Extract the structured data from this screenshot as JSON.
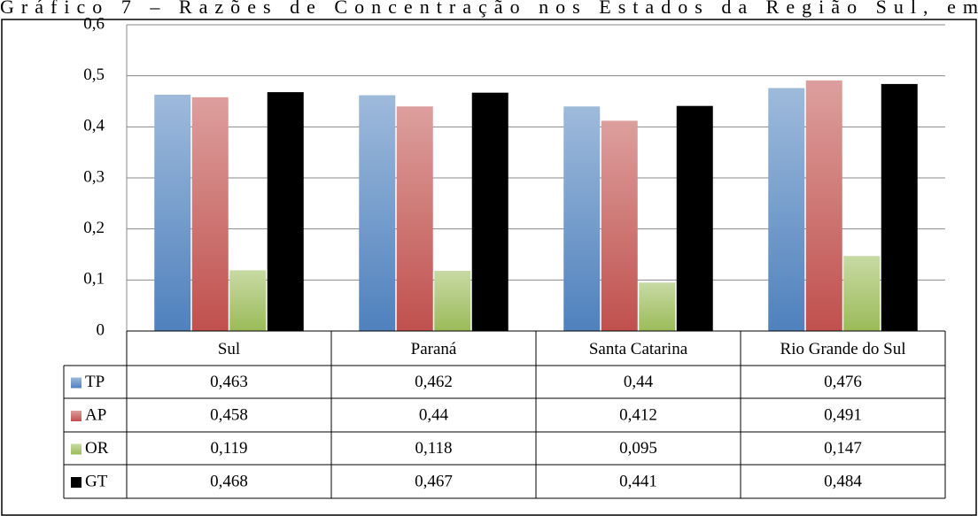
{
  "chart_data": {
    "type": "bar",
    "title": "Gráfico 7 – Razões de Concentração nos Estados da Região Sul, em",
    "categories": [
      "Sul",
      "Paraná",
      "Santa Catarina",
      "Rio Grande do Sul"
    ],
    "series": [
      {
        "name": "TP",
        "color": "#4f81bd",
        "values": [
          0.463,
          0.462,
          0.44,
          0.476
        ],
        "value_labels": [
          "0,463",
          "0,462",
          "0,44",
          "0,476"
        ]
      },
      {
        "name": "AP",
        "color": "#c0504d",
        "values": [
          0.458,
          0.44,
          0.412,
          0.491
        ],
        "value_labels": [
          "0,458",
          "0,44",
          "0,412",
          "0,491"
        ]
      },
      {
        "name": "OR",
        "color": "#9bbb59",
        "values": [
          0.119,
          0.118,
          0.095,
          0.147
        ],
        "value_labels": [
          "0,119",
          "0,118",
          "0,095",
          "0,147"
        ]
      },
      {
        "name": "GT",
        "color": "#000000",
        "values": [
          0.468,
          0.467,
          0.441,
          0.484
        ],
        "value_labels": [
          "0,468",
          "0,467",
          "0,441",
          "0,484"
        ]
      }
    ],
    "ylim": [
      0,
      0.6
    ],
    "yticks": [
      0,
      {
        "value": 0.1,
        "label": "0,1"
      },
      {
        "value": 0.2,
        "label": "0,2"
      },
      {
        "value": 0.3,
        "label": "0,3"
      },
      {
        "value": 0.4,
        "label": "0,4"
      },
      {
        "value": 0.5,
        "label": "0,5"
      },
      {
        "value": 0.6,
        "label": "0,6"
      }
    ],
    "grid": true
  }
}
